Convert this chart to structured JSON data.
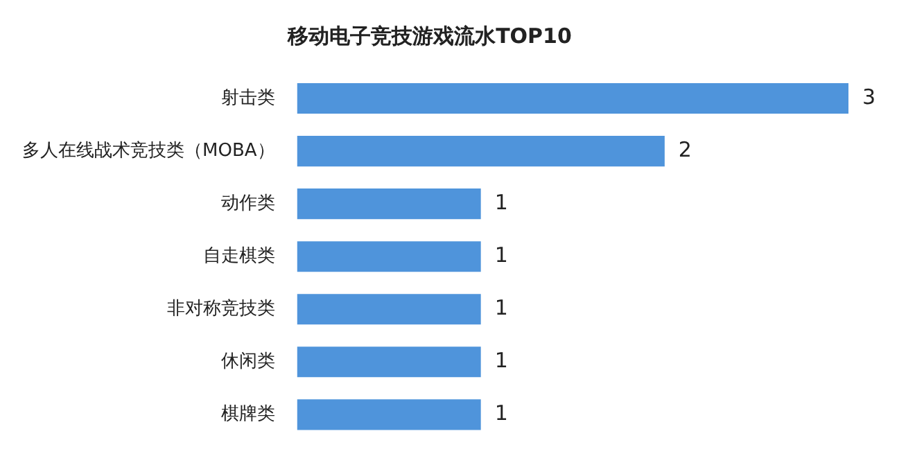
{
  "chart_data": {
    "type": "bar",
    "orientation": "horizontal",
    "title": "移动电子竞技游戏流水TOP10",
    "categories": [
      "射击类",
      "多人在线战术竞技类（MOBA）",
      "动作类",
      "自走棋类",
      "非对称竞技类",
      "休闲类",
      "棋牌类"
    ],
    "values": [
      3,
      2,
      1,
      1,
      1,
      1,
      1
    ],
    "color": "#4f94db",
    "data_labels": true
  }
}
